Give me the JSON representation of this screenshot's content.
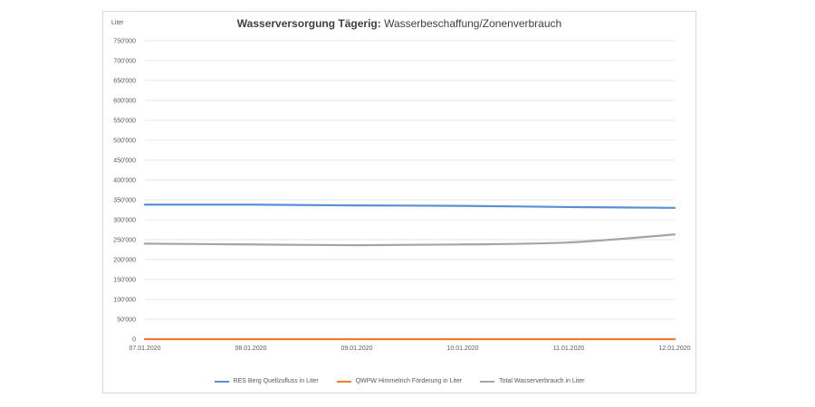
{
  "chart_data": {
    "type": "line",
    "title_bold": "Wasserversorgung Tägerig:",
    "title_rest": "Wasserbeschaffung/Zonenverbrauch",
    "ylabel": "Liter",
    "ylim": [
      0,
      750000
    ],
    "y_ticks": [
      "0",
      "50'000",
      "100'000",
      "150'000",
      "200'000",
      "250'000",
      "300'000",
      "350'000",
      "400'000",
      "450'000",
      "500'000",
      "550'000",
      "600'000",
      "650'000",
      "700'000",
      "750'000"
    ],
    "x": [
      "07.01.2020",
      "08.01.2020",
      "09.01.2020",
      "10.01.2020",
      "11.01.2020",
      "12.01.2020"
    ],
    "grid": true,
    "legend_position": "bottom",
    "series": [
      {
        "name": "RES Berg Quellzufluss in Liter",
        "color": "#5b8fd4",
        "values": [
          338000,
          338000,
          336000,
          335000,
          332000,
          330000
        ]
      },
      {
        "name": "QWPW Himmelrich Förderung in Liter",
        "color": "#ed7d31",
        "values": [
          0,
          0,
          0,
          0,
          0,
          0
        ]
      },
      {
        "name": "Total Wasserverbrauch in Liter",
        "color": "#a5a5a5",
        "values": [
          240000,
          238000,
          236000,
          238000,
          243000,
          263000
        ]
      }
    ]
  }
}
